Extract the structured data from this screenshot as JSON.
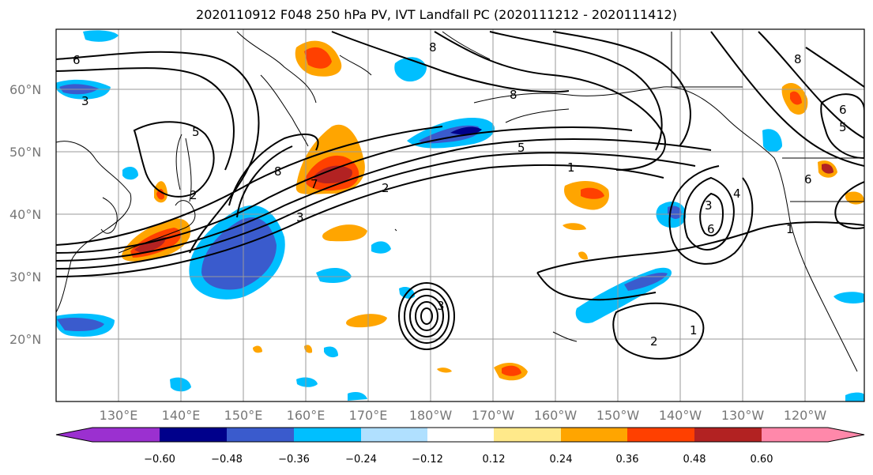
{
  "title": "2020110912 F048 250 hPa PV, IVT Landfall PC (2020111212 - 2020111412)",
  "colors": {
    "background": "#ffffff",
    "contour": "#000000",
    "grid": "#9a9a9a",
    "coast": "#000000"
  },
  "lat_labels": [
    "60°N",
    "50°N",
    "40°N",
    "30°N",
    "20°N"
  ],
  "lon_labels": [
    "130°E",
    "140°E",
    "150°E",
    "160°E",
    "170°E",
    "180°W",
    "170°W",
    "160°W",
    "150°W",
    "140°W",
    "130°W",
    "120°W"
  ],
  "colorbar": {
    "colors": [
      "#9b30d0",
      "#00008b",
      "#3a5bcd",
      "#00bfff",
      "#b0e0ff",
      "#ffffff",
      "#ffe98a",
      "#ffa500",
      "#ff4000",
      "#b22222",
      "#ff88aa"
    ],
    "ticks": [
      "−0.60",
      "−0.48",
      "−0.36",
      "−0.24",
      "−0.12",
      "0.12",
      "0.24",
      "0.36",
      "0.48",
      "0.60"
    ]
  },
  "contour_labels": [
    "6",
    "3",
    "5",
    "8",
    "7",
    "2",
    "3",
    "8",
    "8",
    "5",
    "1",
    "2",
    "6",
    "3",
    "4",
    "2",
    "1",
    "1",
    "3",
    "6",
    "8",
    "5",
    "6"
  ]
}
